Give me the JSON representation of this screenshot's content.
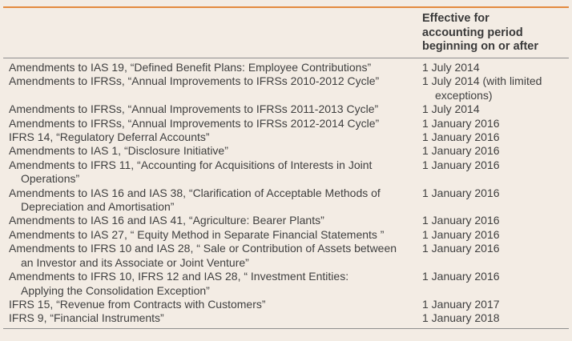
{
  "header": {
    "col2_lines": [
      "Effective for",
      "accounting period",
      "beginning on or after"
    ]
  },
  "rows": [
    {
      "desc": [
        "Amendments to IAS 19, “Defined Benefit Plans: Employee Contributions”"
      ],
      "date": [
        "1 July 2014"
      ]
    },
    {
      "desc": [
        "Amendments to IFRSs, “Annual Improvements to IFRSs 2010-2012 Cycle”"
      ],
      "date": [
        "1 July 2014 (with limited",
        "exceptions)"
      ]
    },
    {
      "desc": [
        "Amendments to IFRSs, “Annual Improvements to IFRSs 2011-2013 Cycle”"
      ],
      "date": [
        "1 July 2014"
      ]
    },
    {
      "desc": [
        "Amendments to IFRSs, “Annual Improvements to IFRSs 2012-2014 Cycle”"
      ],
      "date": [
        "1 January 2016"
      ]
    },
    {
      "desc": [
        "IFRS 14, “Regulatory Deferral Accounts”"
      ],
      "date": [
        "1 January 2016"
      ]
    },
    {
      "desc": [
        "Amendments to IAS 1, “Disclosure Initiative”"
      ],
      "date": [
        "1 January 2016"
      ]
    },
    {
      "desc": [
        "Amendments to IFRS 11, “Accounting for Acquisitions of Interests in Joint",
        "Operations”"
      ],
      "date": [
        "1 January 2016"
      ]
    },
    {
      "desc": [
        "Amendments to IAS 16 and IAS 38, “Clarification of Acceptable Methods of",
        "Depreciation and Amortisation”"
      ],
      "date": [
        "1 January 2016"
      ]
    },
    {
      "desc": [
        "Amendments to IAS 16 and IAS 41, “Agriculture: Bearer Plants”"
      ],
      "date": [
        "1 January 2016"
      ]
    },
    {
      "desc": [
        "Amendments to IAS 27, “ Equity Method in Separate Financial Statements ”"
      ],
      "date": [
        "1 January 2016"
      ]
    },
    {
      "desc": [
        "Amendments to IFRS 10 and IAS 28, “ Sale or Contribution of Assets between",
        "an Investor and its Associate or Joint Venture”"
      ],
      "date": [
        "1 January 2016"
      ]
    },
    {
      "desc": [
        "Amendments to IFRS 10, IFRS 12 and IAS 28, “ Investment Entities:",
        "Applying the Consolidation Exception”"
      ],
      "date": [
        "1 January 2016"
      ]
    },
    {
      "desc": [
        "IFRS 15, “Revenue from Contracts with Customers”"
      ],
      "date": [
        "1 January 2017"
      ]
    },
    {
      "desc": [
        "IFRS 9, “Financial Instruments”"
      ],
      "date": [
        "1 January 2018"
      ]
    }
  ]
}
